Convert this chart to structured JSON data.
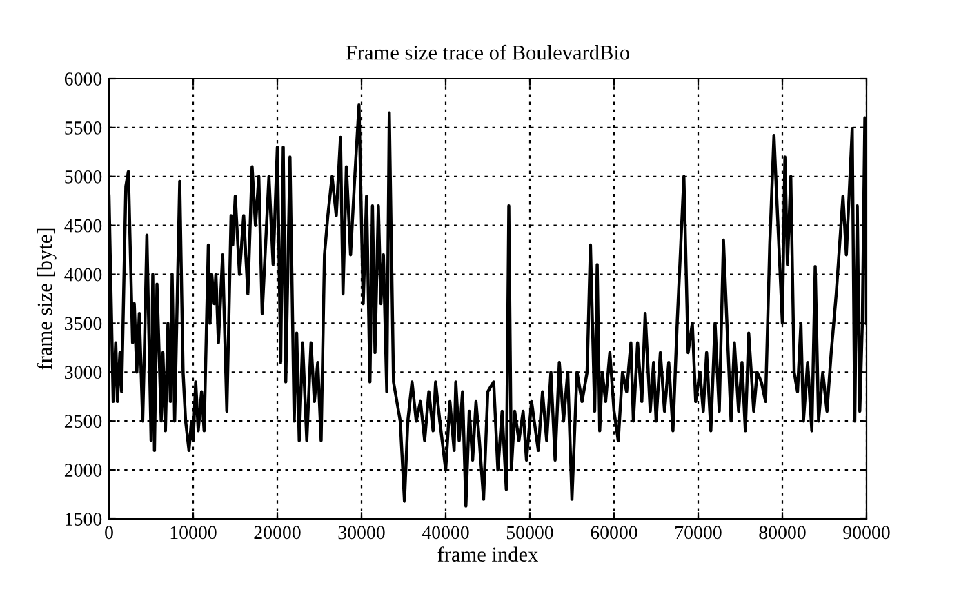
{
  "chart_data": {
    "type": "line",
    "title": "Frame size trace of BoulevardBio",
    "xlabel": "frame index",
    "ylabel": "frame size [byte]",
    "xlim": [
      0,
      90000
    ],
    "xticks": [
      0,
      10000,
      20000,
      30000,
      40000,
      50000,
      60000,
      70000,
      80000,
      90000
    ],
    "ylim": [
      1500,
      6000
    ],
    "yticks": [
      1500,
      2000,
      2500,
      3000,
      3500,
      4000,
      4500,
      5000,
      5500,
      6000
    ],
    "grid": true,
    "marker": "none",
    "line_style": "solid",
    "series": [
      {
        "color": "#000000",
        "x": [
          0,
          500,
          800,
          1000,
          1300,
          1500,
          2000,
          2300,
          2800,
          3000,
          3300,
          3600,
          4000,
          4200,
          4500,
          5000,
          5200,
          5400,
          5700,
          6200,
          6400,
          6700,
          7000,
          7300,
          7500,
          7800,
          8400,
          8800,
          9100,
          9500,
          9800,
          10000,
          10300,
          10600,
          11000,
          11300,
          11800,
          12000,
          12200,
          12500,
          12700,
          13000,
          13500,
          14000,
          14500,
          14700,
          15000,
          15500,
          16000,
          16500,
          17000,
          17400,
          17800,
          18200,
          19000,
          19500,
          20000,
          20400,
          20700,
          21000,
          21500,
          22000,
          22300,
          22600,
          23000,
          23500,
          24000,
          24400,
          24800,
          25200,
          25600,
          26000,
          26500,
          27000,
          27500,
          27800,
          28200,
          28700,
          29200,
          29700,
          30200,
          30600,
          31000,
          31300,
          31600,
          32000,
          32300,
          32600,
          33000,
          33300,
          33800,
          34200,
          34600,
          35100,
          35500,
          36000,
          36500,
          37000,
          37500,
          38000,
          38500,
          38800,
          39300,
          40000,
          40500,
          41000,
          41200,
          41600,
          42000,
          42400,
          42800,
          43200,
          43600,
          44000,
          44500,
          45000,
          45700,
          46200,
          46700,
          47200,
          47500,
          47800,
          48200,
          48700,
          49200,
          49600,
          50200,
          51000,
          51500,
          52000,
          52500,
          53000,
          53500,
          54000,
          54500,
          55000,
          55600,
          56200,
          56800,
          57200,
          57700,
          58000,
          58300,
          58600,
          59000,
          59500,
          60000,
          60500,
          61000,
          61500,
          62000,
          62300,
          62800,
          63300,
          63700,
          64300,
          64700,
          65000,
          65500,
          66000,
          66500,
          67000,
          67500,
          68300,
          68800,
          69300,
          69700,
          70200,
          70600,
          71000,
          71500,
          72000,
          72500,
          73000,
          73900,
          74300,
          74800,
          75200,
          75600,
          76000,
          76600,
          77000,
          77500,
          78000,
          78500,
          79000,
          80000,
          80300,
          80600,
          81000,
          81400,
          81800,
          82200,
          82500,
          83000,
          83500,
          83900,
          84300,
          84800,
          85300,
          85800,
          86400,
          87200,
          87600,
          88300,
          88600,
          88900,
          89200,
          89500,
          89800,
          90000
        ],
        "values": [
          4800,
          2700,
          3300,
          2700,
          3200,
          2800,
          4900,
          5050,
          3300,
          3700,
          3000,
          3600,
          2500,
          3200,
          4400,
          2300,
          4000,
          2200,
          3900,
          2500,
          3200,
          2400,
          3500,
          2700,
          4000,
          2500,
          4950,
          3000,
          2500,
          2200,
          2500,
          2300,
          2900,
          2400,
          2800,
          2400,
          4300,
          3500,
          4000,
          3700,
          4000,
          3300,
          4200,
          2600,
          4600,
          4300,
          4800,
          4000,
          4600,
          3800,
          5100,
          4500,
          5000,
          3600,
          5000,
          4100,
          5300,
          3100,
          5300,
          2900,
          5200,
          2500,
          3400,
          2300,
          3300,
          2300,
          3300,
          2700,
          3100,
          2300,
          4200,
          4600,
          5000,
          4600,
          5400,
          3800,
          5100,
          4200,
          5000,
          5730,
          3700,
          4800,
          2900,
          4700,
          3200,
          4700,
          3700,
          4200,
          2800,
          5650,
          2900,
          2700,
          2500,
          1680,
          2500,
          2900,
          2500,
          2700,
          2300,
          2800,
          2400,
          2900,
          2500,
          2000,
          2700,
          2200,
          2900,
          2300,
          2800,
          1630,
          2600,
          2100,
          2700,
          2300,
          1700,
          2800,
          2900,
          2000,
          2600,
          1800,
          4700,
          2000,
          2600,
          2300,
          2600,
          2100,
          2700,
          2200,
          2800,
          2300,
          3000,
          2100,
          3100,
          2500,
          3000,
          1700,
          3000,
          2700,
          3000,
          4300,
          2600,
          4100,
          2400,
          3000,
          2700,
          3200,
          2600,
          2300,
          3000,
          2800,
          3300,
          2500,
          3300,
          2700,
          3600,
          2600,
          3100,
          2500,
          3200,
          2600,
          3100,
          2400,
          3500,
          5000,
          3200,
          3500,
          2700,
          3000,
          2600,
          3200,
          2400,
          3500,
          2600,
          4350,
          2500,
          3300,
          2600,
          3100,
          2400,
          3400,
          2600,
          3000,
          2900,
          2700,
          4300,
          5420,
          3500,
          5200,
          4100,
          5000,
          3000,
          2800,
          3500,
          2500,
          3100,
          2400,
          4080,
          2500,
          3000,
          2600,
          3200,
          3800,
          4800,
          4200,
          5490,
          2500,
          4700,
          2600,
          3500,
          5600,
          3500
        ]
      }
    ]
  }
}
